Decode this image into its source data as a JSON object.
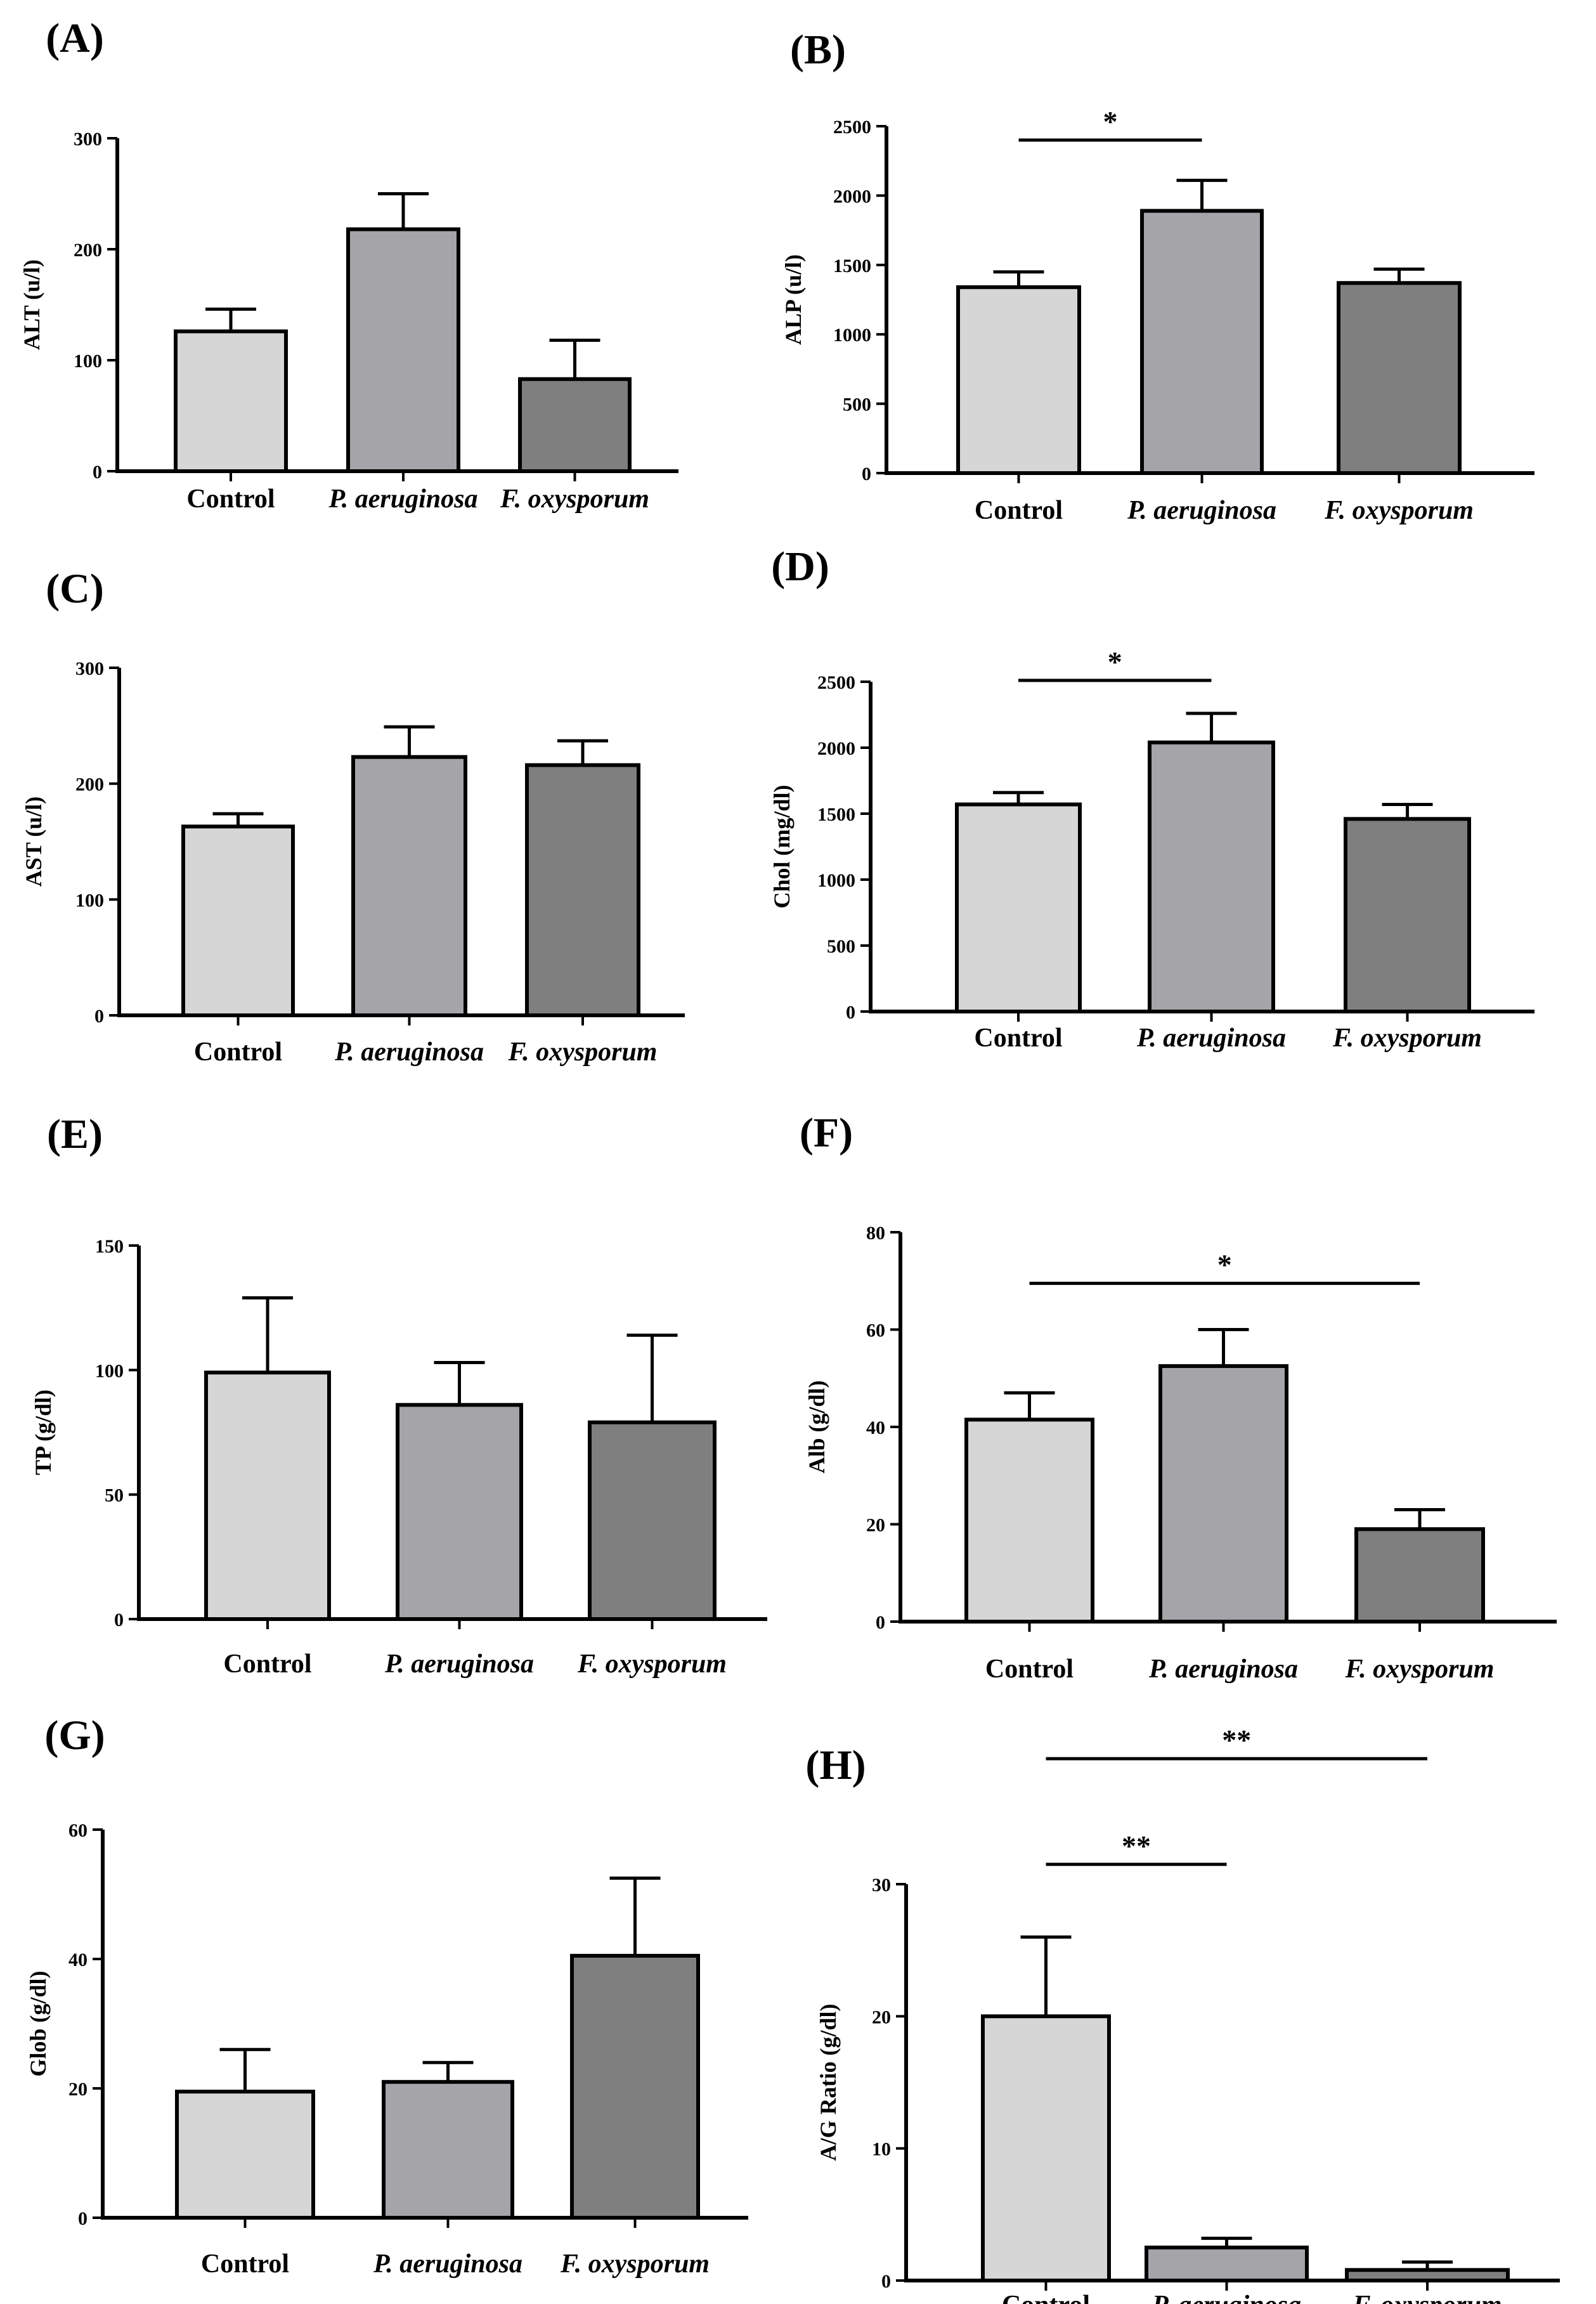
{
  "figure": {
    "layout": "4 rows x 2 columns"
  },
  "bar_colors": [
    "#d6d6d6",
    "#a5a4a9",
    "#7f7f7f"
  ],
  "chart_data": [
    {
      "panel": "(A)",
      "type": "bar",
      "categories": [
        "Control",
        "P. aeruginosa",
        "F. oxysporum"
      ],
      "values": [
        126,
        218,
        83
      ],
      "errors": [
        20,
        32,
        35
      ],
      "ylabel": "ALT (u/l)",
      "ylim": [
        0,
        300
      ],
      "yticks": [
        0,
        100,
        200,
        300
      ],
      "ytick_labels": [
        "0",
        "100",
        "200",
        "300"
      ],
      "significance": []
    },
    {
      "panel": "(B)",
      "type": "bar",
      "categories": [
        "Control",
        "P. aeruginosa",
        "F. oxysporum"
      ],
      "values": [
        1340,
        1890,
        1370
      ],
      "errors": [
        110,
        220,
        100
      ],
      "ylabel": "ALP (u/l)",
      "ylim": [
        0,
        2500
      ],
      "yticks": [
        0,
        500,
        1000,
        1500,
        2000,
        2500
      ],
      "ytick_labels": [
        "0",
        "500",
        "1000",
        "1500",
        "2000",
        "2500"
      ],
      "significance": [
        {
          "from": 0,
          "to": 1,
          "label": "*",
          "y": 2400
        }
      ]
    },
    {
      "panel": "(C)",
      "type": "bar",
      "categories": [
        "Control",
        "P. aeruginosa",
        "F. oxysporum"
      ],
      "values": [
        163,
        223,
        216
      ],
      "errors": [
        11,
        26,
        21
      ],
      "ylabel": "AST (u/l)",
      "ylim": [
        0,
        300
      ],
      "yticks": [
        0,
        100,
        200,
        300
      ],
      "ytick_labels": [
        "0",
        "100",
        "200",
        "300"
      ],
      "significance": []
    },
    {
      "panel": "(D)",
      "type": "bar",
      "categories": [
        "Control",
        "P. aeruginosa",
        "F. oxysporum"
      ],
      "values": [
        1570,
        2040,
        1460
      ],
      "errors": [
        90,
        220,
        110
      ],
      "ylabel": "Chol (mg/dl)",
      "ylim": [
        0,
        2500
      ],
      "yticks": [
        0,
        500,
        1000,
        1500,
        2000,
        2500
      ],
      "ytick_labels": [
        "0",
        "500",
        "1000",
        "1500",
        "2000",
        "2500"
      ],
      "significance": [
        {
          "from": 0,
          "to": 1,
          "label": "*",
          "y": 2510
        }
      ]
    },
    {
      "panel": "(E)",
      "type": "bar",
      "categories": [
        "Control",
        "P. aeruginosa",
        "F. oxysporum"
      ],
      "values": [
        99,
        86,
        79
      ],
      "errors": [
        30,
        17,
        35
      ],
      "ylabel": "TP (g/dl)",
      "ylim": [
        0,
        150
      ],
      "yticks": [
        0,
        50,
        100,
        150
      ],
      "ytick_labels": [
        "0",
        "50",
        "100",
        "150"
      ],
      "significance": []
    },
    {
      "panel": "(F)",
      "type": "bar",
      "categories": [
        "Control",
        "P. aeruginosa",
        "F. oxysporum"
      ],
      "values": [
        41.5,
        52.5,
        19
      ],
      "errors": [
        5.5,
        7.5,
        4
      ],
      "ylabel": "Alb (g/dl)",
      "ylim": [
        0,
        80
      ],
      "yticks": [
        0,
        20,
        40,
        60,
        80
      ],
      "ytick_labels": [
        "0",
        "20",
        "40",
        "60",
        "80"
      ],
      "significance": [
        {
          "from": 0,
          "to": 2,
          "label": "*",
          "y": 69.5
        }
      ]
    },
    {
      "panel": "(G)",
      "type": "bar",
      "categories": [
        "Control",
        "P. aeruginosa",
        "F. oxysporum"
      ],
      "values": [
        19.5,
        21,
        40.5
      ],
      "errors": [
        6.5,
        3,
        12
      ],
      "ylabel": "Glob (g/dl)",
      "ylim": [
        0,
        60
      ],
      "yticks": [
        0,
        20,
        40,
        60
      ],
      "ytick_labels": [
        "0",
        "20",
        "40",
        "60"
      ],
      "significance": []
    },
    {
      "panel": "(H)",
      "type": "bar",
      "categories": [
        "Control",
        "P. aeruginosa",
        "F. oxysporum"
      ],
      "values": [
        20,
        2.5,
        0.8
      ],
      "errors": [
        6,
        0.7,
        0.6
      ],
      "ylabel": "A/G Ratio (g/dl)",
      "ylim": [
        0,
        30
      ],
      "yticks": [
        0,
        10,
        20,
        30
      ],
      "ytick_labels": [
        "0",
        "10",
        "20",
        "30"
      ],
      "significance": [
        {
          "from": 0,
          "to": 1,
          "label": "**",
          "y": 31.5
        },
        {
          "from": 0,
          "to": 2,
          "label": "**",
          "y": 39.5
        }
      ]
    }
  ]
}
